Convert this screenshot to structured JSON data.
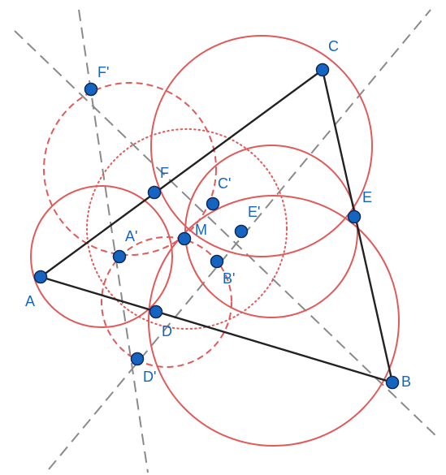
{
  "diagram": {
    "colors": {
      "point_fill": "#1565c0",
      "label": "#1565c0",
      "triangle": "#222222",
      "circle": "#e05a5a",
      "guide_line": "#8a8a8a"
    },
    "points": {
      "A": {
        "label": "A"
      },
      "B": {
        "label": "B"
      },
      "C": {
        "label": "C"
      },
      "D": {
        "label": "D"
      },
      "E": {
        "label": "E"
      },
      "F": {
        "label": "F"
      },
      "M": {
        "label": "M"
      },
      "A1": {
        "label": "A'"
      },
      "B1": {
        "label": "B'"
      },
      "C1": {
        "label": "C'"
      },
      "D1": {
        "label": "D'"
      },
      "E1": {
        "label": "E'"
      },
      "F1": {
        "label": "F'"
      }
    }
  }
}
